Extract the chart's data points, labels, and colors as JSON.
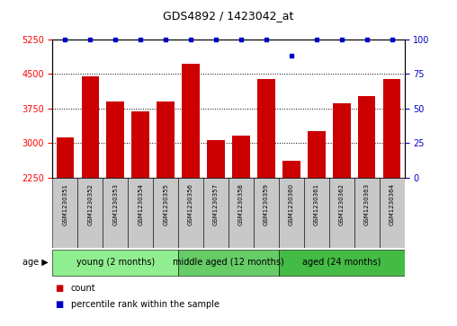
{
  "title": "GDS4892 / 1423042_at",
  "samples": [
    "GSM1230351",
    "GSM1230352",
    "GSM1230353",
    "GSM1230354",
    "GSM1230355",
    "GSM1230356",
    "GSM1230357",
    "GSM1230358",
    "GSM1230359",
    "GSM1230360",
    "GSM1230361",
    "GSM1230362",
    "GSM1230363",
    "GSM1230364"
  ],
  "counts": [
    3120,
    4450,
    3900,
    3680,
    3900,
    4720,
    3060,
    3160,
    4380,
    2620,
    3260,
    3870,
    4010,
    4390
  ],
  "percentiles": [
    100,
    100,
    100,
    100,
    100,
    100,
    100,
    100,
    100,
    88,
    100,
    100,
    100,
    100
  ],
  "ylim_left": [
    2250,
    5250
  ],
  "ylim_right": [
    0,
    100
  ],
  "yticks_left": [
    2250,
    3000,
    3750,
    4500,
    5250
  ],
  "yticks_right": [
    0,
    25,
    50,
    75,
    100
  ],
  "bar_color": "#cc0000",
  "dot_color": "#0000cc",
  "group_data": [
    {
      "label": "young (2 months)",
      "start": 0,
      "end": 5,
      "color": "#90ee90"
    },
    {
      "label": "middle aged (12 months)",
      "start": 5,
      "end": 9,
      "color": "#66cc66"
    },
    {
      "label": "aged (24 months)",
      "start": 9,
      "end": 14,
      "color": "#44bb44"
    }
  ],
  "background_color": "#ffffff",
  "bar_width": 0.7,
  "title_fontsize": 9,
  "tick_fontsize": 7,
  "sample_fontsize": 5,
  "group_fontsize": 7,
  "legend_fontsize": 7
}
